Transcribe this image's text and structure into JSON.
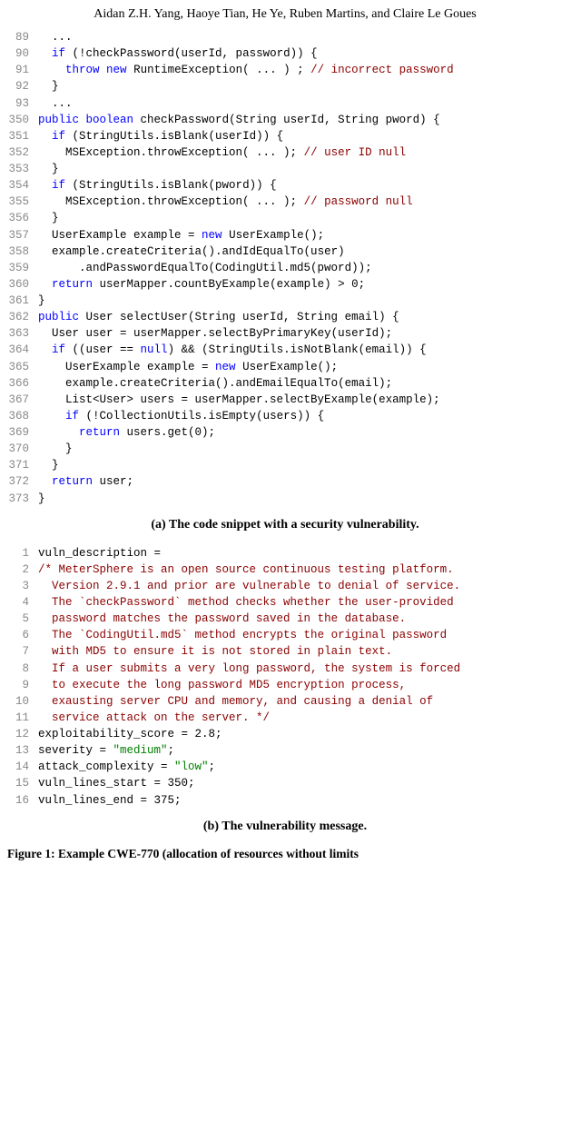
{
  "authors": "Aidan Z.H. Yang, Haoye Tian, He Ye, Ruben Martins, and Claire Le Goues",
  "snippet_a": {
    "lines": [
      {
        "n": "89",
        "indent": 1,
        "tokens": [
          {
            "t": "...",
            "c": ""
          }
        ]
      },
      {
        "n": "90",
        "indent": 1,
        "tokens": [
          {
            "t": "if",
            "c": "kw"
          },
          {
            "t": " (!checkPassword(userId, password)) {",
            "c": ""
          }
        ]
      },
      {
        "n": "91",
        "indent": 2,
        "tokens": [
          {
            "t": "throw",
            "c": "kw"
          },
          {
            "t": " ",
            "c": ""
          },
          {
            "t": "new",
            "c": "kw"
          },
          {
            "t": " RuntimeException( ... ) ; ",
            "c": ""
          },
          {
            "t": "// incorrect password",
            "c": "cmt"
          }
        ]
      },
      {
        "n": "92",
        "indent": 1,
        "tokens": [
          {
            "t": "}",
            "c": ""
          }
        ]
      },
      {
        "n": "93",
        "indent": 1,
        "tokens": [
          {
            "t": "...",
            "c": ""
          }
        ]
      },
      {
        "n": "350",
        "indent": 0,
        "tokens": [
          {
            "t": "public",
            "c": "kw"
          },
          {
            "t": " ",
            "c": ""
          },
          {
            "t": "boolean",
            "c": "kw"
          },
          {
            "t": " checkPassword(String userId, String pword) {",
            "c": ""
          }
        ]
      },
      {
        "n": "351",
        "indent": 1,
        "tokens": [
          {
            "t": "if",
            "c": "kw"
          },
          {
            "t": " (StringUtils.isBlank(userId)) {",
            "c": ""
          }
        ]
      },
      {
        "n": "352",
        "indent": 2,
        "tokens": [
          {
            "t": "MSException.throwException( ... ); ",
            "c": ""
          },
          {
            "t": "// user ID null",
            "c": "cmt"
          }
        ]
      },
      {
        "n": "353",
        "indent": 1,
        "tokens": [
          {
            "t": "}",
            "c": ""
          }
        ]
      },
      {
        "n": "354",
        "indent": 1,
        "tokens": [
          {
            "t": "if",
            "c": "kw"
          },
          {
            "t": " (StringUtils.isBlank(pword)) {",
            "c": ""
          }
        ]
      },
      {
        "n": "355",
        "indent": 2,
        "tokens": [
          {
            "t": "MSException.throwException( ... ); ",
            "c": ""
          },
          {
            "t": "// password null",
            "c": "cmt"
          }
        ]
      },
      {
        "n": "356",
        "indent": 1,
        "tokens": [
          {
            "t": "}",
            "c": ""
          }
        ]
      },
      {
        "n": "357",
        "indent": 1,
        "tokens": [
          {
            "t": "UserExample example = ",
            "c": ""
          },
          {
            "t": "new",
            "c": "kw"
          },
          {
            "t": " UserExample();",
            "c": ""
          }
        ]
      },
      {
        "n": "358",
        "indent": 1,
        "tokens": [
          {
            "t": "example.createCriteria().andIdEqualTo(user)",
            "c": ""
          }
        ]
      },
      {
        "n": "359",
        "indent": 3,
        "tokens": [
          {
            "t": ".andPasswordEqualTo(CodingUtil.md5(pword));",
            "c": ""
          }
        ]
      },
      {
        "n": "360",
        "indent": 1,
        "tokens": [
          {
            "t": "return",
            "c": "kw"
          },
          {
            "t": " userMapper.countByExample(example) > 0;",
            "c": ""
          }
        ]
      },
      {
        "n": "361",
        "indent": 0,
        "tokens": [
          {
            "t": "}",
            "c": ""
          }
        ]
      },
      {
        "n": "362",
        "indent": 0,
        "tokens": [
          {
            "t": "public",
            "c": "kw"
          },
          {
            "t": " User selectUser(String userId, String email) {",
            "c": ""
          }
        ]
      },
      {
        "n": "363",
        "indent": 1,
        "tokens": [
          {
            "t": "User user = userMapper.selectByPrimaryKey(userId);",
            "c": ""
          }
        ]
      },
      {
        "n": "364",
        "indent": 1,
        "tokens": [
          {
            "t": "if",
            "c": "kw"
          },
          {
            "t": " ((user == ",
            "c": ""
          },
          {
            "t": "null",
            "c": "kw"
          },
          {
            "t": ") && (StringUtils.isNotBlank(email)) {",
            "c": ""
          }
        ]
      },
      {
        "n": "365",
        "indent": 2,
        "tokens": [
          {
            "t": "UserExample example = ",
            "c": ""
          },
          {
            "t": "new",
            "c": "kw"
          },
          {
            "t": " UserExample();",
            "c": ""
          }
        ]
      },
      {
        "n": "366",
        "indent": 2,
        "tokens": [
          {
            "t": "example.createCriteria().andEmailEqualTo(email);",
            "c": ""
          }
        ]
      },
      {
        "n": "367",
        "indent": 2,
        "tokens": [
          {
            "t": "List<User> users = userMapper.selectByExample(example);",
            "c": ""
          }
        ]
      },
      {
        "n": "368",
        "indent": 2,
        "tokens": [
          {
            "t": "if",
            "c": "kw"
          },
          {
            "t": " (!CollectionUtils.isEmpty(users)) {",
            "c": ""
          }
        ]
      },
      {
        "n": "369",
        "indent": 3,
        "tokens": [
          {
            "t": "return",
            "c": "kw"
          },
          {
            "t": " users.get(0);",
            "c": ""
          }
        ]
      },
      {
        "n": "370",
        "indent": 2,
        "tokens": [
          {
            "t": "}",
            "c": ""
          }
        ]
      },
      {
        "n": "371",
        "indent": 1,
        "tokens": [
          {
            "t": "}",
            "c": ""
          }
        ]
      },
      {
        "n": "372",
        "indent": 1,
        "tokens": [
          {
            "t": "return",
            "c": "kw"
          },
          {
            "t": " user;",
            "c": ""
          }
        ]
      },
      {
        "n": "373",
        "indent": 0,
        "tokens": [
          {
            "t": "}",
            "c": ""
          }
        ]
      }
    ]
  },
  "caption_a": "(a) The code snippet with a security vulnerability.",
  "snippet_b": {
    "lines": [
      {
        "n": "1",
        "indent": 0,
        "tokens": [
          {
            "t": "vuln_description =",
            "c": ""
          }
        ]
      },
      {
        "n": "2",
        "indent": 0,
        "tokens": [
          {
            "t": "/* MeterSphere is an open source continuous testing platform.",
            "c": "cmt"
          }
        ]
      },
      {
        "n": "3",
        "indent": 1,
        "tokens": [
          {
            "t": "Version 2.9.1 and prior are vulnerable to denial of service.",
            "c": "cmt"
          }
        ]
      },
      {
        "n": "4",
        "indent": 1,
        "tokens": [
          {
            "t": "The `checkPassword` method checks whether the user-provided",
            "c": "cmt"
          }
        ]
      },
      {
        "n": "5",
        "indent": 1,
        "tokens": [
          {
            "t": "password matches the password saved in the database.",
            "c": "cmt"
          }
        ]
      },
      {
        "n": "6",
        "indent": 1,
        "tokens": [
          {
            "t": "The `CodingUtil.md5` method encrypts the original password",
            "c": "cmt"
          }
        ]
      },
      {
        "n": "7",
        "indent": 1,
        "tokens": [
          {
            "t": "with MD5 to ensure it is not stored in plain text.",
            "c": "cmt"
          }
        ]
      },
      {
        "n": "8",
        "indent": 1,
        "tokens": [
          {
            "t": "If a user submits a very long password, the system is forced",
            "c": "cmt"
          }
        ]
      },
      {
        "n": "9",
        "indent": 1,
        "tokens": [
          {
            "t": "to execute the long password MD5 encryption process,",
            "c": "cmt"
          }
        ]
      },
      {
        "n": "10",
        "indent": 1,
        "tokens": [
          {
            "t": "exausting server CPU and memory, and causing a denial of",
            "c": "cmt"
          }
        ]
      },
      {
        "n": "11",
        "indent": 1,
        "tokens": [
          {
            "t": "service attack on the server. */",
            "c": "cmt"
          }
        ]
      },
      {
        "n": "12",
        "indent": 0,
        "tokens": [
          {
            "t": "exploitability_score = 2.8;",
            "c": ""
          }
        ]
      },
      {
        "n": "13",
        "indent": 0,
        "tokens": [
          {
            "t": "severity = ",
            "c": ""
          },
          {
            "t": "\"medium\"",
            "c": "str"
          },
          {
            "t": ";",
            "c": ""
          }
        ]
      },
      {
        "n": "14",
        "indent": 0,
        "tokens": [
          {
            "t": "attack_complexity = ",
            "c": ""
          },
          {
            "t": "\"low\"",
            "c": "str"
          },
          {
            "t": ";",
            "c": ""
          }
        ]
      },
      {
        "n": "15",
        "indent": 0,
        "tokens": [
          {
            "t": "vuln_lines_start = 350;",
            "c": ""
          }
        ]
      },
      {
        "n": "16",
        "indent": 0,
        "tokens": [
          {
            "t": "vuln_lines_end = 375;",
            "c": ""
          }
        ]
      }
    ]
  },
  "caption_b": "(b) The vulnerability message.",
  "figure_caption": "Figure 1: Example CWE-770 (allocation of resources without limits",
  "colors": {
    "keyword": "#0000ff",
    "comment": "#8b0000",
    "string": "#008000",
    "lineno": "#888888",
    "text": "#000000"
  },
  "indent_unit": "  "
}
